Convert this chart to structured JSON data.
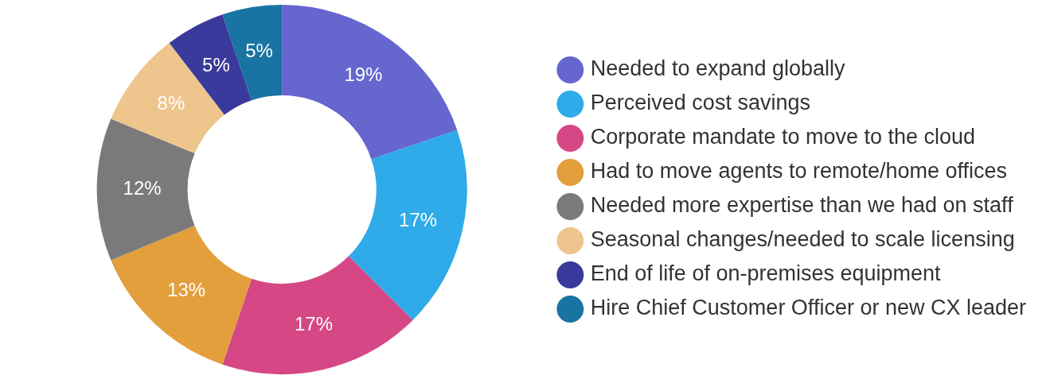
{
  "chart_data": {
    "type": "donut",
    "categories": [
      "Needed to expand globally",
      "Perceived cost savings",
      "Corporate mandate to move to the cloud",
      "Had to move agents to remote/home offices",
      "Needed more expertise than we had on staff",
      "Seasonal changes/needed to scale licensing",
      "End of life of on-premises equipment",
      "Hire Chief Customer Officer or new CX leader"
    ],
    "values": [
      19,
      17,
      17,
      13,
      12,
      8,
      5,
      5
    ],
    "colors": [
      "#6567cf",
      "#2eabe8",
      "#d64785",
      "#e29f3c",
      "#7a7a7a",
      "#eec58d",
      "#3a3a9c",
      "#1a74a3"
    ],
    "value_labels": [
      "19%",
      "17%",
      "17%",
      "13%",
      "12%",
      "8%",
      "5%",
      "5%"
    ],
    "legend": "right"
  }
}
